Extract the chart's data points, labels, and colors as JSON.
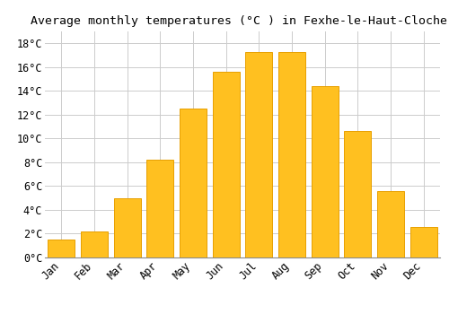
{
  "title": "Average monthly temperatures (°C ) in Fexhe-le-Haut-Clocher",
  "months": [
    "Jan",
    "Feb",
    "Mar",
    "Apr",
    "May",
    "Jun",
    "Jul",
    "Aug",
    "Sep",
    "Oct",
    "Nov",
    "Dec"
  ],
  "temperatures": [
    1.5,
    2.2,
    5.0,
    8.2,
    12.5,
    15.6,
    17.3,
    17.3,
    14.4,
    10.6,
    5.6,
    2.6
  ],
  "bar_color": "#FFC020",
  "bar_edge_color": "#E8A000",
  "background_color": "#FFFFFF",
  "grid_color": "#CCCCCC",
  "ylim": [
    0,
    19
  ],
  "yticks": [
    0,
    2,
    4,
    6,
    8,
    10,
    12,
    14,
    16,
    18
  ],
  "title_fontsize": 9.5,
  "tick_fontsize": 8.5,
  "tick_font_family": "monospace"
}
